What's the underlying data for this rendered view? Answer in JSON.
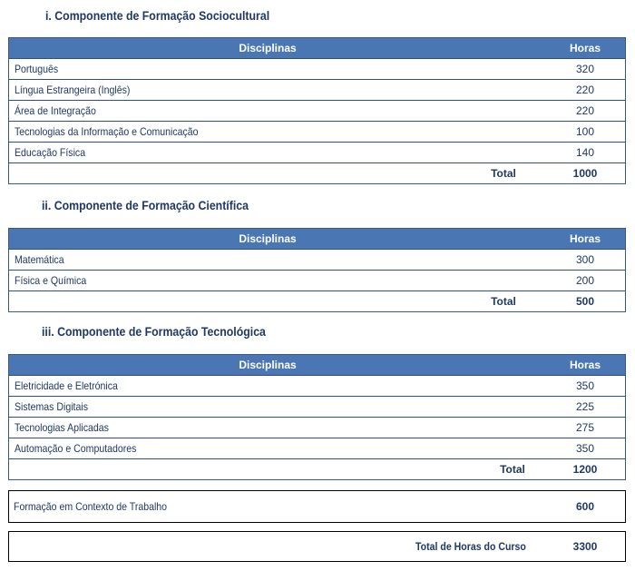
{
  "sections": [
    {
      "heading": "i. Componente de Formação Sociocultural",
      "header": {
        "disciplinas": "Disciplinas",
        "horas": "Horas"
      },
      "rows": [
        {
          "name": "Português",
          "hours": "320"
        },
        {
          "name": "Língua Estrangeira (Inglês)",
          "hours": "220"
        },
        {
          "name": "Área de Integração",
          "hours": "220"
        },
        {
          "name": "Tecnologias da Informação e Comunicação",
          "hours": "100"
        },
        {
          "name": "Educação Física",
          "hours": "140"
        }
      ],
      "total_label": "Total",
      "total": "1000"
    },
    {
      "heading": "ii. Componente de Formação Científica",
      "header": {
        "disciplinas": "Disciplinas",
        "horas": "Horas"
      },
      "rows": [
        {
          "name": "Matemática",
          "hours": "300"
        },
        {
          "name": "Física e Química",
          "hours": "200"
        }
      ],
      "total_label": "Total",
      "total": "500"
    },
    {
      "heading": "iii. Componente de Formação Tecnológica",
      "header": {
        "disciplinas": "Disciplinas",
        "horas": "Horas"
      },
      "rows": [
        {
          "name": "Eletricidade e Eletrónica",
          "hours": "350"
        },
        {
          "name": "Sistemas Digitais",
          "hours": "225"
        },
        {
          "name": "Tecnologias Aplicadas",
          "hours": "275"
        },
        {
          "name": "Automação e Computadores",
          "hours": "350"
        }
      ],
      "total_label": "Total",
      "total": "1200"
    }
  ],
  "fct": {
    "label": "Formação em Contexto de Trabalho",
    "hours": "600"
  },
  "course_total": {
    "label": "Total de Horas do Curso",
    "hours": "3300"
  },
  "colors": {
    "header_bg": "#4a76b4",
    "text": "#1f3864",
    "border": "#2f4f7f"
  }
}
